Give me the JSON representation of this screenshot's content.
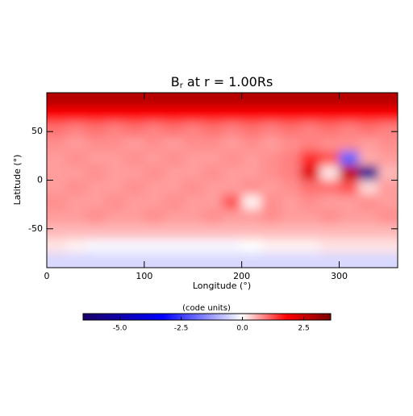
{
  "chart_data": {
    "type": "heatmap",
    "title": {
      "symbol": "B",
      "subscript": "r",
      "rest": " at r = 1.00Rs"
    },
    "x_label": "Longitude (°)",
    "y_label": "Latitude (°)",
    "colorbar_label": "(code units)",
    "x": [
      10,
      30,
      50,
      70,
      90,
      110,
      130,
      150,
      170,
      190,
      210,
      230,
      250,
      270,
      290,
      310,
      330,
      350
    ],
    "y": [
      82.5,
      67.5,
      52.5,
      37.5,
      22.5,
      7.5,
      -7.5,
      -22.5,
      -37.5,
      -52.5,
      -67.5,
      -82.5
    ],
    "values": [
      [
        2.8,
        2.8,
        2.8,
        2.8,
        2.8,
        2.8,
        2.8,
        2.8,
        2.8,
        2.8,
        2.8,
        2.8,
        2.8,
        2.8,
        2.8,
        2.8,
        2.8,
        2.8
      ],
      [
        1.8,
        1.8,
        1.8,
        1.8,
        1.8,
        1.8,
        1.8,
        1.8,
        1.8,
        1.8,
        1.8,
        1.8,
        1.8,
        1.8,
        1.8,
        1.8,
        1.8,
        1.8
      ],
      [
        1.0,
        0.9,
        1.0,
        0.9,
        1.0,
        0.9,
        1.0,
        0.9,
        1.0,
        0.9,
        1.0,
        0.9,
        1.0,
        0.9,
        1.0,
        0.9,
        1.0,
        0.9
      ],
      [
        0.8,
        0.7,
        0.8,
        0.8,
        0.7,
        0.8,
        0.7,
        0.8,
        0.8,
        0.7,
        0.8,
        0.7,
        0.8,
        0.9,
        0.8,
        0.8,
        0.7,
        0.8
      ],
      [
        0.7,
        0.8,
        0.7,
        0.7,
        0.8,
        0.7,
        0.8,
        0.7,
        0.7,
        0.8,
        0.7,
        0.8,
        0.9,
        1.5,
        1.2,
        -2.0,
        0.6,
        0.7
      ],
      [
        0.7,
        0.7,
        0.8,
        0.7,
        0.7,
        0.8,
        0.7,
        0.7,
        0.8,
        0.7,
        0.7,
        0.8,
        0.9,
        2.2,
        0.2,
        2.6,
        -5.5,
        0.5
      ],
      [
        0.7,
        0.8,
        0.7,
        0.7,
        0.8,
        0.7,
        0.7,
        0.8,
        0.7,
        0.7,
        0.8,
        0.7,
        0.8,
        1.0,
        1.0,
        1.2,
        0.3,
        0.7
      ],
      [
        0.8,
        0.7,
        0.7,
        0.8,
        0.7,
        0.7,
        0.8,
        0.7,
        0.7,
        1.2,
        0.1,
        0.8,
        0.7,
        0.8,
        0.7,
        0.7,
        0.8,
        0.7
      ],
      [
        0.7,
        0.7,
        0.8,
        0.7,
        0.7,
        0.8,
        0.7,
        0.7,
        0.8,
        0.7,
        0.7,
        0.8,
        0.7,
        0.7,
        0.8,
        0.7,
        0.7,
        0.8
      ],
      [
        0.5,
        0.5,
        0.5,
        0.5,
        0.5,
        0.5,
        0.5,
        0.5,
        0.5,
        0.5,
        0.5,
        0.5,
        0.5,
        0.5,
        0.5,
        0.5,
        0.5,
        0.5
      ],
      [
        0.2,
        0.1,
        -0.1,
        -0.1,
        -0.1,
        -0.1,
        -0.1,
        -0.1,
        -0.1,
        -0.1,
        0.0,
        0.1,
        0.1,
        0.1,
        0.2,
        0.2,
        0.2,
        0.2
      ],
      [
        -0.5,
        -0.5,
        -0.5,
        -0.5,
        -0.5,
        -0.5,
        -0.5,
        -0.5,
        -0.5,
        -0.5,
        -0.5,
        -0.5,
        -0.5,
        -0.5,
        -0.5,
        -0.5,
        -0.5,
        -0.5
      ]
    ],
    "xlim": [
      0,
      360
    ],
    "ylim": [
      -90,
      90
    ],
    "xticks": [
      0,
      100,
      200,
      300
    ],
    "yticks": [
      -50,
      0,
      50
    ],
    "zlim": [
      -6.5,
      3.6
    ],
    "zticks": [
      {
        "value": -5,
        "label": "-5.0"
      },
      {
        "value": -2.5,
        "label": "-2.5"
      },
      {
        "value": 0,
        "label": "0.0"
      },
      {
        "value": 2.5,
        "label": "2.5"
      }
    ],
    "colormap": [
      {
        "value": -6.5,
        "color": "#1a0066"
      },
      {
        "value": -3.25,
        "color": "#0000ff"
      },
      {
        "value": 0,
        "color": "#ffffff"
      },
      {
        "value": 1.8,
        "color": "#ff0000"
      },
      {
        "value": 3.6,
        "color": "#7a0000"
      }
    ]
  }
}
